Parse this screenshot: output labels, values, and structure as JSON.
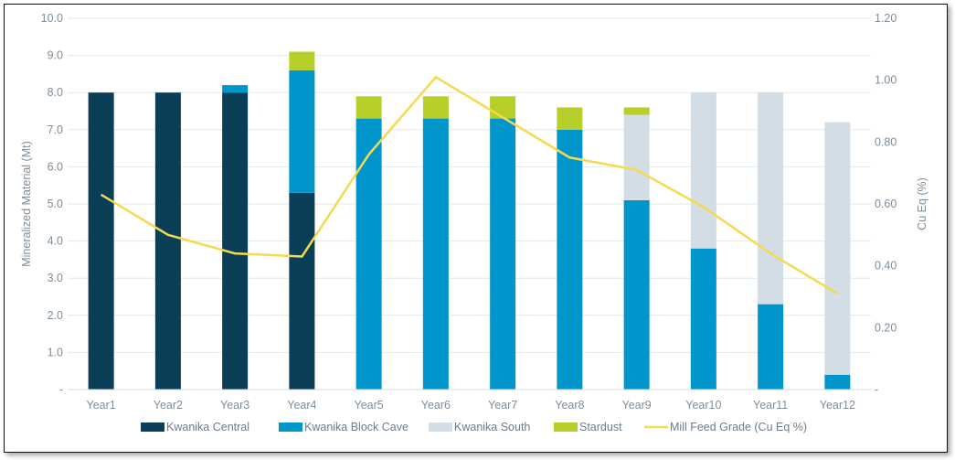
{
  "chart_data": {
    "type": "bar",
    "stacked": true,
    "categories": [
      "Year1",
      "Year2",
      "Year3",
      "Year4",
      "Year5",
      "Year6",
      "Year7",
      "Year8",
      "Year9",
      "Year10",
      "Year11",
      "Year12"
    ],
    "series": [
      {
        "name": "Kwanika Central",
        "color": "#0b3f58",
        "values": [
          8.0,
          8.0,
          8.0,
          5.3,
          0,
          0,
          0,
          0,
          0,
          0,
          0,
          0
        ]
      },
      {
        "name": "Kwanika Block Cave",
        "color": "#0096cc",
        "values": [
          0,
          0,
          0.2,
          3.3,
          7.3,
          7.3,
          7.3,
          7.0,
          5.1,
          3.8,
          2.3,
          0.4
        ]
      },
      {
        "name": "Kwanika South",
        "color": "#d2dde6",
        "values": [
          0,
          0,
          0,
          0,
          0,
          0,
          0,
          0,
          2.3,
          4.2,
          5.7,
          6.8
        ]
      },
      {
        "name": "Stardust",
        "color": "#b8cf2a",
        "values": [
          0,
          0,
          0,
          0.5,
          0.6,
          0.6,
          0.6,
          0.6,
          0.2,
          0,
          0,
          0
        ]
      }
    ],
    "line_series": {
      "name": "Mill Feed Grade (Cu Eq %)",
      "color": "#f5d94e",
      "values": [
        0.63,
        0.5,
        0.44,
        0.43,
        0.76,
        1.01,
        0.88,
        0.75,
        0.71,
        0.59,
        0.44,
        0.31
      ]
    },
    "ylabel": "Mineralized Material (Mt)",
    "y2label": "Cu Eq (%)",
    "ylim": [
      0,
      10
    ],
    "y2lim": [
      0,
      1.2
    ],
    "yticks": [
      "-",
      "1.0",
      "2.0",
      "3.0",
      "4.0",
      "5.0",
      "6.0",
      "7.0",
      "8.0",
      "9.0",
      "10.0"
    ],
    "y2ticks": [
      "-",
      "0.20",
      "0.40",
      "0.60",
      "0.80",
      "1.00",
      "1.20"
    ],
    "grid": true,
    "legend_position": "bottom"
  }
}
